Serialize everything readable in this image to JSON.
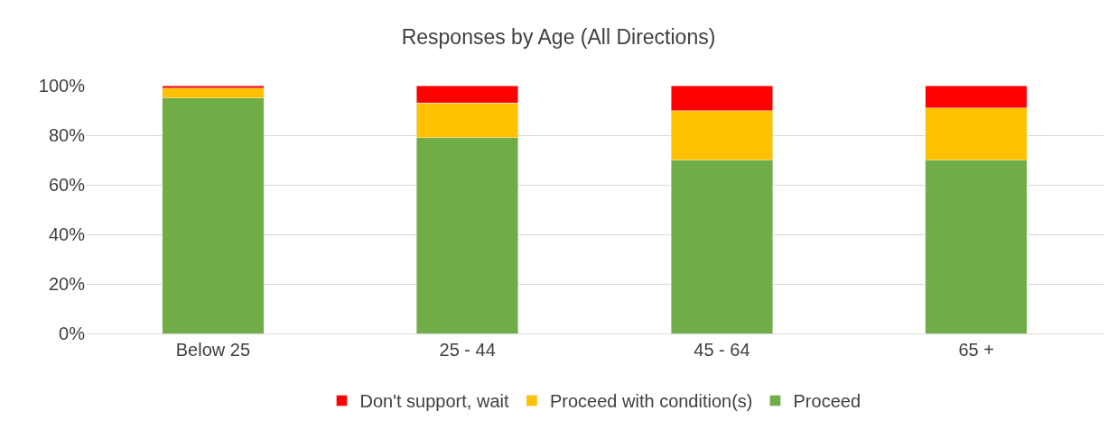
{
  "chart_data": {
    "type": "bar",
    "title": "Responses by Age (All Directions)",
    "categories": [
      "Below 25",
      "25 - 44",
      "45 - 64",
      "65 +"
    ],
    "series": [
      {
        "name": "Proceed",
        "color": "#70ad47",
        "values": [
          95,
          79,
          70,
          70
        ]
      },
      {
        "name": "Proceed with condition(s)",
        "color": "#ffc000",
        "values": [
          4,
          14,
          20,
          21
        ]
      },
      {
        "name": "Don't support, wait",
        "color": "#ff0000",
        "values": [
          1,
          7,
          10,
          9
        ]
      }
    ],
    "stacked": true,
    "ylim": [
      0,
      100
    ],
    "yticks": [
      {
        "value": 0,
        "label": "0%"
      },
      {
        "value": 20,
        "label": "20%"
      },
      {
        "value": 40,
        "label": "40%"
      },
      {
        "value": 60,
        "label": "60%"
      },
      {
        "value": 80,
        "label": "80%"
      },
      {
        "value": 100,
        "label": "100%"
      }
    ],
    "grid": "y",
    "legend": "bottom"
  }
}
